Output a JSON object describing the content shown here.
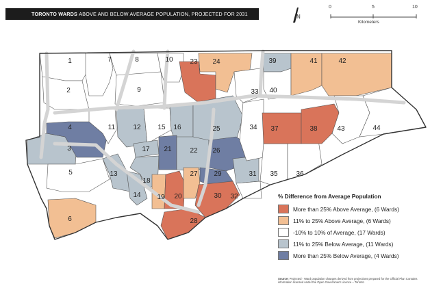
{
  "title": {
    "bold": "TORONTO WARDS",
    "rest": "ABOVE AND BELOW AVERAGE POPULATION,  PROJECTED FOR 2031"
  },
  "north_label": "N",
  "scale": {
    "ticks": [
      "0",
      "5",
      "10"
    ],
    "unit": "Kilometers"
  },
  "legend": {
    "title": "% Difference from Average Population",
    "items": [
      {
        "label": "More than 25% Above Average,  (6 Wards)",
        "color": "#d9745a"
      },
      {
        "label": "11% to 25% Above Average,  (6 Wards)",
        "color": "#f2bf93"
      },
      {
        "label": "-10% to 10% of Average,  (17 Wards)",
        "color": "#ffffff"
      },
      {
        "label": "11% to 25% Below Average,  (11 Wards)",
        "color": "#b8c4cd"
      },
      {
        "label": "More than 25% Below Average,  (4 Wards)",
        "color": "#6f7ea3"
      }
    ]
  },
  "source": {
    "label": "Source:",
    "text": "Projected - Ward population changes derived from projections prepared for the Official Plan Contains information licensed under the Open Government Licence – Toronto"
  },
  "wards": [
    {
      "n": "1",
      "cls": "avg"
    },
    {
      "n": "2",
      "cls": "avg"
    },
    {
      "n": "3",
      "cls": "below11"
    },
    {
      "n": "4",
      "cls": "below25"
    },
    {
      "n": "5",
      "cls": "avg"
    },
    {
      "n": "6",
      "cls": "above11"
    },
    {
      "n": "7",
      "cls": "avg"
    },
    {
      "n": "8",
      "cls": "avg"
    },
    {
      "n": "9",
      "cls": "avg"
    },
    {
      "n": "10",
      "cls": "avg"
    },
    {
      "n": "11",
      "cls": "avg"
    },
    {
      "n": "12",
      "cls": "below11"
    },
    {
      "n": "13",
      "cls": "below11"
    },
    {
      "n": "14",
      "cls": "below11"
    },
    {
      "n": "15",
      "cls": "avg"
    },
    {
      "n": "16",
      "cls": "below11"
    },
    {
      "n": "17",
      "cls": "below11"
    },
    {
      "n": "18",
      "cls": "below11"
    },
    {
      "n": "19",
      "cls": "above11"
    },
    {
      "n": "20",
      "cls": "above25"
    },
    {
      "n": "21",
      "cls": "below25"
    },
    {
      "n": "22",
      "cls": "below11"
    },
    {
      "n": "23",
      "cls": "above25"
    },
    {
      "n": "24",
      "cls": "above11"
    },
    {
      "n": "25",
      "cls": "below11"
    },
    {
      "n": "26",
      "cls": "below25"
    },
    {
      "n": "27",
      "cls": "above11"
    },
    {
      "n": "28",
      "cls": "above25"
    },
    {
      "n": "29",
      "cls": "below25"
    },
    {
      "n": "30",
      "cls": "above25"
    },
    {
      "n": "31",
      "cls": "below11"
    },
    {
      "n": "32",
      "cls": "avg"
    },
    {
      "n": "33",
      "cls": "avg"
    },
    {
      "n": "34",
      "cls": "avg"
    },
    {
      "n": "35",
      "cls": "avg"
    },
    {
      "n": "36",
      "cls": "avg"
    },
    {
      "n": "37",
      "cls": "above25"
    },
    {
      "n": "38",
      "cls": "above25"
    },
    {
      "n": "39",
      "cls": "below11"
    },
    {
      "n": "40",
      "cls": "avg"
    },
    {
      "n": "41",
      "cls": "above11"
    },
    {
      "n": "42",
      "cls": "above11"
    },
    {
      "n": "43",
      "cls": "avg"
    },
    {
      "n": "44",
      "cls": "avg"
    }
  ],
  "class_colors": {
    "above25": "#d9745a",
    "above11": "#f2bf93",
    "avg": "#ffffff",
    "below11": "#b8c4cd",
    "below25": "#6f7ea3",
    "highway": "#d4d4d4",
    "border": "#333333",
    "ward_line": "#555555"
  }
}
